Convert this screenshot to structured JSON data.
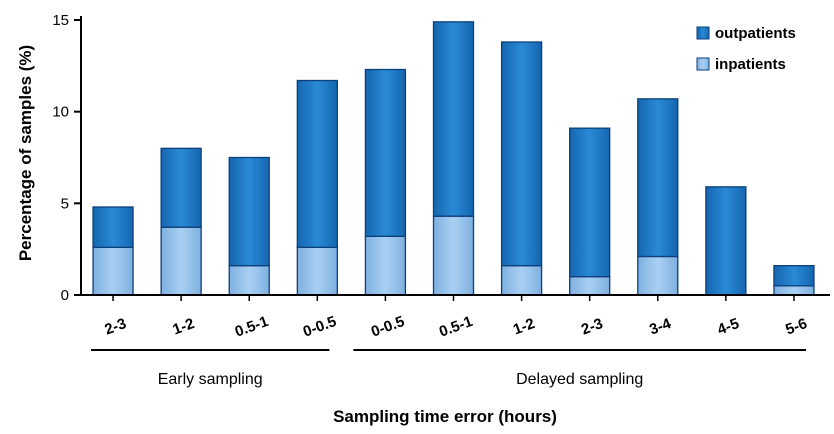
{
  "chart_data": {
    "type": "bar",
    "stacked": true,
    "categories": [
      "2-3",
      "1-2",
      "0.5-1",
      "0-0.5",
      "0-0.5",
      "0.5-1",
      "1-2",
      "2-3",
      "3-4",
      "4-5",
      "5-6"
    ],
    "series": [
      {
        "name": "inpatients",
        "color": "#8fbce8",
        "values": [
          2.6,
          3.7,
          1.6,
          2.6,
          3.2,
          4.3,
          1.6,
          1.0,
          2.1,
          0.0,
          0.5
        ]
      },
      {
        "name": "outpatients",
        "color": "#1a78c2",
        "values": [
          2.2,
          4.3,
          5.9,
          9.1,
          9.1,
          10.6,
          12.2,
          8.1,
          8.6,
          5.9,
          1.1
        ]
      }
    ],
    "totals": [
      4.8,
      8.0,
      7.5,
      11.7,
      12.3,
      14.9,
      13.8,
      9.1,
      10.7,
      5.9,
      1.6
    ],
    "ylim": [
      0,
      15
    ],
    "yticks": [
      0,
      5,
      10,
      15
    ],
    "ylabel": "Percentage of samples (%)",
    "xlabel": "Sampling time error (hours)",
    "groups": [
      {
        "label": "Early sampling",
        "from": 0,
        "to": 3
      },
      {
        "label": "Delayed sampling",
        "from": 4,
        "to": 10
      }
    ],
    "legend_position": "top-right",
    "grid": false
  }
}
